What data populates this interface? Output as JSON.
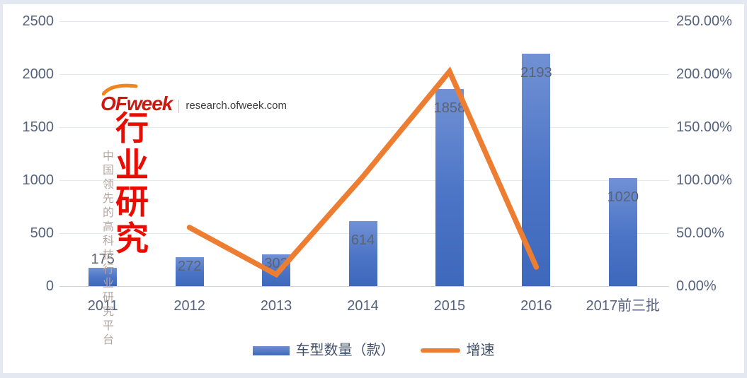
{
  "watermark": {
    "logo_text": "OFweek",
    "logo_suffix": "research.ofweek.com",
    "title": "行业研究",
    "tagline": "中国领先的高科技行业研究平台"
  },
  "legend": {
    "bar_label": "车型数量（款）",
    "line_label": "增速"
  },
  "chart_data": {
    "type": "bar",
    "title": "",
    "categories": [
      "2011",
      "2012",
      "2013",
      "2014",
      "2015",
      "2016",
      "2017前三批"
    ],
    "series": [
      {
        "name": "车型数量（款）",
        "type": "bar",
        "y_axis": "left",
        "color": "#4472C4",
        "values": [
          175,
          272,
          302,
          614,
          1858,
          2193,
          1020
        ],
        "data_labels": [
          "175",
          "272",
          "302",
          "614",
          "1858",
          "2193",
          "1020"
        ]
      },
      {
        "name": "增速",
        "type": "line",
        "y_axis": "right",
        "color": "#ED7D31",
        "unit": "%",
        "values": [
          null,
          55.43,
          11.03,
          103.31,
          202.61,
          18.03,
          null
        ]
      }
    ],
    "left_axis": {
      "min": 0,
      "max": 2500,
      "tick_step": 500,
      "ticks": [
        "2500",
        "2000",
        "1500",
        "1000",
        "500",
        "0"
      ]
    },
    "right_axis": {
      "min": 0,
      "max": 250,
      "tick_step": 50,
      "ticks": [
        "250.00%",
        "200.00%",
        "150.00%",
        "100.00%",
        "50.00%",
        "0.00%"
      ]
    },
    "grid": true,
    "legend_position": "bottom"
  },
  "colors": {
    "bar_fill": "#4472C4",
    "line_stroke": "#ED7D31",
    "axis_text": "#54627E",
    "gridline": "#E4E8EF",
    "data_label": "#5B6373",
    "logo_red": "#CD1810",
    "title_red": "#E90C02",
    "tagline_gray": "#B4A6A0",
    "swoosh_orange": "#F08519"
  }
}
